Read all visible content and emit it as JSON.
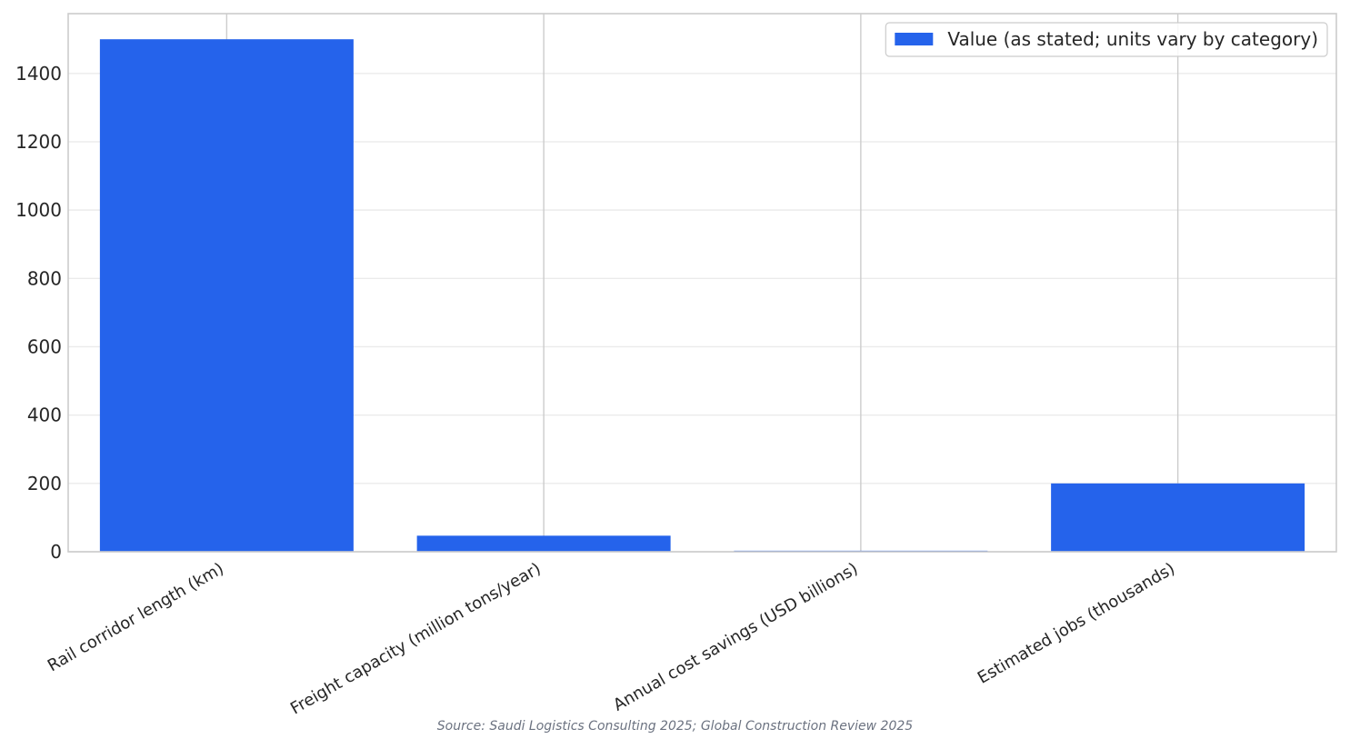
{
  "chart_data": {
    "type": "bar",
    "categories": [
      "Rail corridor length (km)",
      "Freight capacity (million tons/year)",
      "Annual cost savings (USD billions)",
      "Estimated jobs (thousands)"
    ],
    "series": [
      {
        "name": "Value (as stated; units vary by category)",
        "values": [
          1500,
          47,
          3,
          200
        ]
      }
    ],
    "yticks": [
      0,
      200,
      400,
      600,
      800,
      1000,
      1200,
      1400
    ],
    "ylim": [
      0,
      1575
    ],
    "grid": true,
    "legend_position": "top-right",
    "bar_color": "#2563eb",
    "source_text": "Source: Saudi Logistics Consulting 2025; Global Construction Review 2025"
  }
}
